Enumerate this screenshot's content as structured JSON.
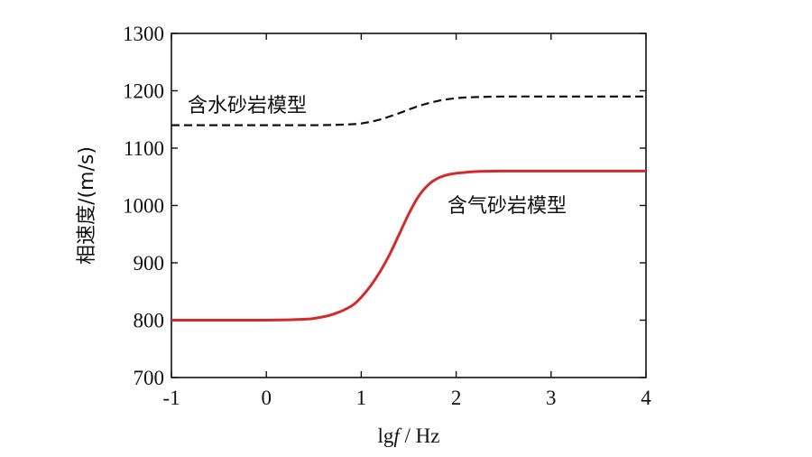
{
  "chart_data": {
    "type": "line",
    "xlabel_prefix": "lg",
    "xlabel_var": "f",
    "xlabel_unit": " / Hz",
    "ylabel": "相速度/(m/s)",
    "xlim": [
      -1,
      4
    ],
    "ylim": [
      700,
      1300
    ],
    "xticks": [
      "-1",
      "0",
      "1",
      "2",
      "3",
      "4"
    ],
    "yticks": [
      "700",
      "800",
      "900",
      "1000",
      "1100",
      "1200",
      "1300"
    ],
    "grid": false,
    "series": [
      {
        "name": "含水砂岩模型",
        "color": "#111111",
        "dash": true,
        "x": [
          -1,
          -0.5,
          0,
          0.5,
          0.8,
          1.0,
          1.2,
          1.4,
          1.6,
          1.8,
          2.0,
          2.2,
          2.5,
          3,
          3.5,
          4
        ],
        "values": [
          1140,
          1140,
          1140,
          1140,
          1141,
          1143,
          1150,
          1161,
          1173,
          1182,
          1187,
          1189,
          1190,
          1190,
          1190,
          1190
        ]
      },
      {
        "name": "含气砂岩模型",
        "color": "#d42a2a",
        "dash": false,
        "x": [
          -1,
          -0.5,
          0,
          0.3,
          0.5,
          0.7,
          0.9,
          1.0,
          1.1,
          1.2,
          1.3,
          1.4,
          1.5,
          1.6,
          1.7,
          1.8,
          1.9,
          2.0,
          2.2,
          2.5,
          3,
          3.5,
          4
        ],
        "values": [
          800,
          800,
          800,
          801,
          803,
          810,
          825,
          840,
          860,
          885,
          915,
          950,
          985,
          1015,
          1035,
          1047,
          1053,
          1056,
          1059,
          1060,
          1060,
          1060,
          1060
        ]
      }
    ]
  }
}
